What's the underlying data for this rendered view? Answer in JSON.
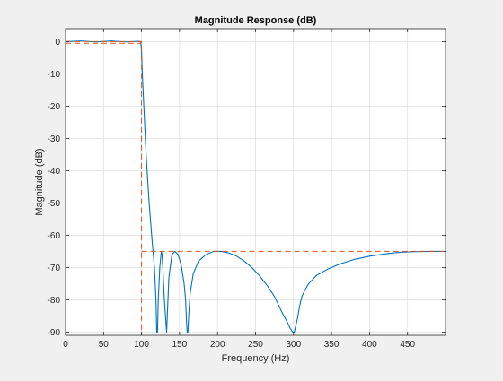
{
  "chart_data": {
    "type": "line",
    "title": "Magnitude Response (dB)",
    "xlabel": "Frequency (Hz)",
    "ylabel": "Magnitude (dB)",
    "xlim": [
      0,
      500
    ],
    "ylim": [
      -91,
      4
    ],
    "x_ticks": [
      0,
      50,
      100,
      150,
      200,
      250,
      300,
      350,
      400,
      450
    ],
    "y_ticks": [
      0,
      -10,
      -20,
      -30,
      -40,
      -50,
      -60,
      -70,
      -80,
      -90
    ],
    "x_tick_labels": [
      "0",
      "50",
      "100",
      "150",
      "200",
      "250",
      "300",
      "350",
      "400",
      "450"
    ],
    "y_tick_labels": [
      "0",
      "-10",
      "-20",
      "-30",
      "-40",
      "-50",
      "-60",
      "-70",
      "-80",
      "-90"
    ],
    "grid": true,
    "series": [
      {
        "role": "filter-response",
        "color": "#0072bd",
        "style": "solid",
        "x": [
          0,
          20,
          40,
          60,
          80,
          95,
          99,
          100,
          101,
          103,
          106,
          110,
          114,
          117,
          119,
          120,
          121,
          122,
          124,
          126,
          127,
          128,
          130,
          133,
          136,
          140,
          144,
          148,
          152,
          156,
          158,
          159,
          160,
          161,
          162,
          164,
          168,
          175,
          185,
          195,
          205,
          215,
          225,
          235,
          245,
          255,
          265,
          275,
          285,
          292,
          296,
          299,
          300,
          301,
          302,
          305,
          308,
          311,
          315,
          320,
          330,
          345,
          360,
          380,
          400,
          420,
          440,
          460,
          480,
          500
        ],
        "y": [
          0,
          0.2,
          -0.1,
          0.2,
          -0.1,
          0.1,
          0,
          -3,
          -10,
          -20,
          -35,
          -50,
          -62,
          -70,
          -80,
          -90,
          -90,
          -80,
          -70,
          -65,
          -66,
          -70,
          -80,
          -90,
          -73,
          -66,
          -65,
          -66,
          -69,
          -75,
          -80,
          -86,
          -90,
          -90,
          -85,
          -78,
          -72,
          -68,
          -66,
          -65,
          -65,
          -65.5,
          -66.5,
          -68,
          -70,
          -72.5,
          -75.5,
          -79,
          -84,
          -87,
          -89,
          -90,
          -90,
          -90,
          -89,
          -86,
          -82,
          -79,
          -77,
          -75,
          -72.5,
          -70.5,
          -69,
          -67.5,
          -66.5,
          -65.8,
          -65.3,
          -65.1,
          -65,
          -65
        ]
      },
      {
        "role": "passband-spec",
        "color": "#d95319",
        "style": "dashed",
        "x": [
          0,
          100,
          100
        ],
        "y": [
          0,
          0,
          -91
        ]
      },
      {
        "role": "passband-spec",
        "color": "#d95319",
        "style": "dashed",
        "x": [
          0,
          100
        ],
        "y": [
          -0.5,
          -0.5
        ]
      },
      {
        "role": "stopband-spec",
        "color": "#d95319",
        "style": "dashed",
        "x": [
          100,
          500
        ],
        "y": [
          -65,
          -65
        ]
      }
    ]
  }
}
